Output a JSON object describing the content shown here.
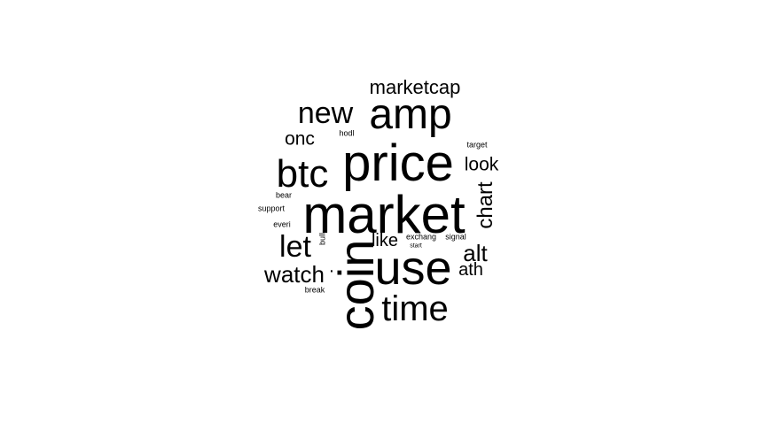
{
  "words": {
    "market": "market",
    "price": "price",
    "coin": "coin",
    "use": "use",
    "amp": "amp",
    "btc": "btc",
    "time": "time",
    "new": "new",
    "let": "let",
    "watch": "watch",
    "alt": "alt",
    "chart": "chart",
    "marketcap": "marketcap",
    "onc": "onc",
    "look": "look",
    "like": "like",
    "ath": "ath",
    "hodl": "hodl",
    "target": "target",
    "bear": "bear",
    "support": "support",
    "everi": "everi",
    "bull": "bull",
    "exchang": "exchang",
    "signal": "signal",
    "start": "start",
    "break": "break",
    "dot": "·"
  },
  "text_color": "#000000",
  "background_color": "#ffffff"
}
